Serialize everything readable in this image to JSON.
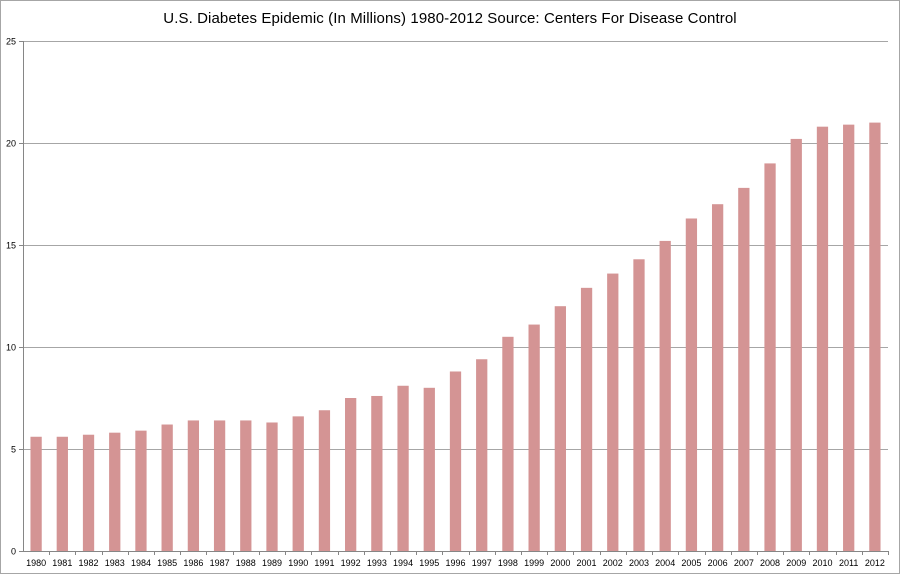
{
  "chart_data": {
    "type": "bar",
    "title": "U.S. Diabetes Epidemic (In Millions) 1980-2012  Source: Centers For Disease Control",
    "xlabel": "",
    "ylabel": "",
    "categories": [
      "1980",
      "1981",
      "1982",
      "1983",
      "1984",
      "1985",
      "1986",
      "1987",
      "1988",
      "1989",
      "1990",
      "1991",
      "1992",
      "1993",
      "1994",
      "1995",
      "1996",
      "1997",
      "1998",
      "1999",
      "2000",
      "2001",
      "2002",
      "2003",
      "2004",
      "2005",
      "2006",
      "2007",
      "2008",
      "2009",
      "2010",
      "2011",
      "2012"
    ],
    "values": [
      5.6,
      5.6,
      5.7,
      5.8,
      5.9,
      6.2,
      6.4,
      6.4,
      6.4,
      6.3,
      6.6,
      6.9,
      7.5,
      7.6,
      8.1,
      8.0,
      8.8,
      9.4,
      10.5,
      11.1,
      12.0,
      12.9,
      13.6,
      14.3,
      15.2,
      16.3,
      17.0,
      17.8,
      19.0,
      20.2,
      20.8,
      20.9,
      21.0
    ],
    "ylim": [
      0,
      25
    ],
    "yticks": [
      "0",
      "5",
      "10",
      "15",
      "20",
      "25"
    ],
    "grid": true,
    "legend": "none",
    "bar_color": "#d49494",
    "grid_color": "#a6a6a6"
  }
}
